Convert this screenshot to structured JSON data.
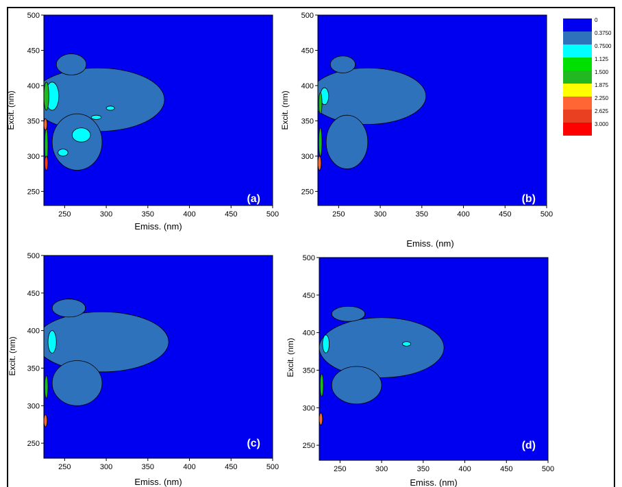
{
  "chart_data": [
    {
      "panel": "(a)",
      "type": "heatmap",
      "xlabel": "Emiss. (nm)",
      "ylabel": "Excit. (nm)",
      "xlim": [
        225,
        500
      ],
      "ylim": [
        230,
        500
      ],
      "xticks": [
        250,
        300,
        350,
        400,
        450,
        500
      ],
      "yticks": [
        250,
        300,
        350,
        400,
        450,
        500
      ],
      "regions": [
        {
          "level": 0.375,
          "cx": 290,
          "cy": 380,
          "rx": 80,
          "ry": 45
        },
        {
          "level": 0.375,
          "cx": 265,
          "cy": 320,
          "rx": 30,
          "ry": 40
        },
        {
          "level": 0.375,
          "cx": 258,
          "cy": 430,
          "rx": 18,
          "ry": 15
        },
        {
          "level": 0.75,
          "cx": 235,
          "cy": 385,
          "rx": 8,
          "ry": 20
        },
        {
          "level": 0.75,
          "cx": 270,
          "cy": 330,
          "rx": 11,
          "ry": 10
        },
        {
          "level": 0.75,
          "cx": 248,
          "cy": 305,
          "rx": 6,
          "ry": 5
        },
        {
          "level": 0.75,
          "cx": 288,
          "cy": 355,
          "rx": 6,
          "ry": 3
        },
        {
          "level": 0.75,
          "cx": 305,
          "cy": 368,
          "rx": 5,
          "ry": 3
        },
        {
          "level": 1.5,
          "cx": 228,
          "cy": 385,
          "rx": 3,
          "ry": 20
        },
        {
          "level": 1.5,
          "cx": 228,
          "cy": 315,
          "rx": 2,
          "ry": 25
        },
        {
          "level": 2.25,
          "cx": 227,
          "cy": 345,
          "rx": 2,
          "ry": 8
        },
        {
          "level": 2.625,
          "cx": 228,
          "cy": 290,
          "rx": 2,
          "ry": 10
        }
      ]
    },
    {
      "panel": "(b)",
      "type": "heatmap",
      "xlabel": "Emiss. (nm)",
      "ylabel": "Excit. (nm)",
      "xlim": [
        225,
        500
      ],
      "ylim": [
        230,
        500
      ],
      "xticks": [
        250,
        300,
        350,
        400,
        450,
        500
      ],
      "yticks": [
        250,
        300,
        350,
        400,
        450,
        500
      ],
      "regions": [
        {
          "level": 0.375,
          "cx": 285,
          "cy": 385,
          "rx": 70,
          "ry": 40
        },
        {
          "level": 0.375,
          "cx": 260,
          "cy": 320,
          "rx": 25,
          "ry": 38
        },
        {
          "level": 0.375,
          "cx": 255,
          "cy": 430,
          "rx": 15,
          "ry": 12
        },
        {
          "level": 0.75,
          "cx": 233,
          "cy": 385,
          "rx": 5,
          "ry": 12
        },
        {
          "level": 1.5,
          "cx": 228,
          "cy": 375,
          "rx": 2,
          "ry": 15
        },
        {
          "level": 1.5,
          "cx": 228,
          "cy": 320,
          "rx": 2,
          "ry": 20
        },
        {
          "level": 2.25,
          "cx": 227,
          "cy": 290,
          "rx": 2,
          "ry": 10
        }
      ]
    },
    {
      "panel": "(c)",
      "type": "heatmap",
      "xlabel": "Emiss. (nm)",
      "ylabel": "Excit. (nm)",
      "xlim": [
        225,
        500
      ],
      "ylim": [
        230,
        500
      ],
      "xticks": [
        250,
        300,
        350,
        400,
        450,
        500
      ],
      "yticks": [
        250,
        300,
        350,
        400,
        450,
        500
      ],
      "regions": [
        {
          "level": 0.375,
          "cx": 295,
          "cy": 385,
          "rx": 80,
          "ry": 40
        },
        {
          "level": 0.375,
          "cx": 265,
          "cy": 330,
          "rx": 30,
          "ry": 30
        },
        {
          "level": 0.375,
          "cx": 255,
          "cy": 430,
          "rx": 20,
          "ry": 12
        },
        {
          "level": 0.75,
          "cx": 235,
          "cy": 385,
          "rx": 5,
          "ry": 15
        },
        {
          "level": 1.5,
          "cx": 228,
          "cy": 325,
          "rx": 2,
          "ry": 15
        },
        {
          "level": 2.25,
          "cx": 227,
          "cy": 280,
          "rx": 2,
          "ry": 8
        }
      ]
    },
    {
      "panel": "(d)",
      "type": "heatmap",
      "xlabel": "Emiss. (nm)",
      "ylabel": "Excit. (nm)",
      "xlim": [
        225,
        500
      ],
      "ylim": [
        230,
        500
      ],
      "xticks": [
        250,
        300,
        350,
        400,
        450,
        500
      ],
      "yticks": [
        250,
        300,
        350,
        400,
        450,
        500
      ],
      "regions": [
        {
          "level": 0.375,
          "cx": 300,
          "cy": 380,
          "rx": 75,
          "ry": 40
        },
        {
          "level": 0.375,
          "cx": 270,
          "cy": 330,
          "rx": 30,
          "ry": 25
        },
        {
          "level": 0.375,
          "cx": 260,
          "cy": 425,
          "rx": 20,
          "ry": 10
        },
        {
          "level": 0.75,
          "cx": 233,
          "cy": 385,
          "rx": 4,
          "ry": 12
        },
        {
          "level": 0.75,
          "cx": 330,
          "cy": 385,
          "rx": 5,
          "ry": 3
        },
        {
          "level": 1.5,
          "cx": 228,
          "cy": 330,
          "rx": 2,
          "ry": 15
        },
        {
          "level": 2.25,
          "cx": 227,
          "cy": 285,
          "rx": 2,
          "ry": 8
        }
      ]
    }
  ],
  "legend": {
    "levels": [
      "0",
      "0.3750",
      "0.7500",
      "1.125",
      "1.500",
      "1.875",
      "2.250",
      "2.625",
      "3.000"
    ],
    "colors": [
      "#0000f0",
      "#2f72bc",
      "#00ffff",
      "#00e000",
      "#22b822",
      "#ffff00",
      "#ff6633",
      "#e84020",
      "#ff0000"
    ]
  },
  "colors": {
    "background": "#0000f0",
    "contour_line": "#000000"
  }
}
